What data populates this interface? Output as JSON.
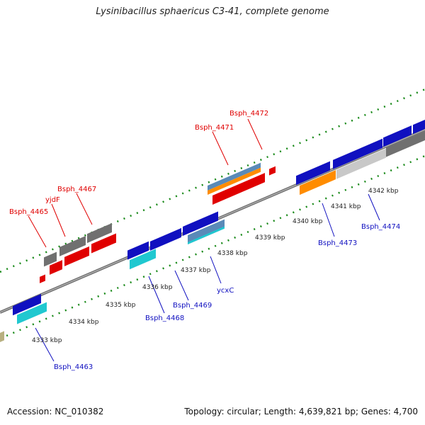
{
  "title": "Lysinibacillus sphaericus C3-41, complete genome",
  "footer": {
    "accession": "Accession: NC_010382",
    "summary": "Topology: circular; Length: 4,639,821 bp; Genes: 4,700"
  },
  "kbp_ticks": [
    "4333 kbp",
    "4334 kbp",
    "4335 kbp",
    "4336 kbp",
    "4337 kbp",
    "4338 kbp",
    "4339 kbp",
    "4340 kbp",
    "4341 kbp",
    "4342 kbp"
  ],
  "top_labels": [
    "Bsph_4465",
    "yjdF",
    "Bsph_4467",
    "Bsph_4471",
    "Bsph_4472"
  ],
  "bottom_labels": [
    "Bsph_4463",
    "Bsph_4468",
    "Bsph_4469",
    "ycxC",
    "Bsph_4473",
    "Bsph_4474"
  ],
  "colors": {
    "forward_cds": "#e00000",
    "reverse_cds": "#1010c0",
    "grey_gene": "#707070",
    "cyan_gene": "#20c8d0",
    "orange_gene": "#ff8c00",
    "steel_gene": "#5a8ab8",
    "light_grey_gene": "#c8c8c8",
    "backbone": "#808080",
    "tick_green": "#1a8a1a"
  }
}
